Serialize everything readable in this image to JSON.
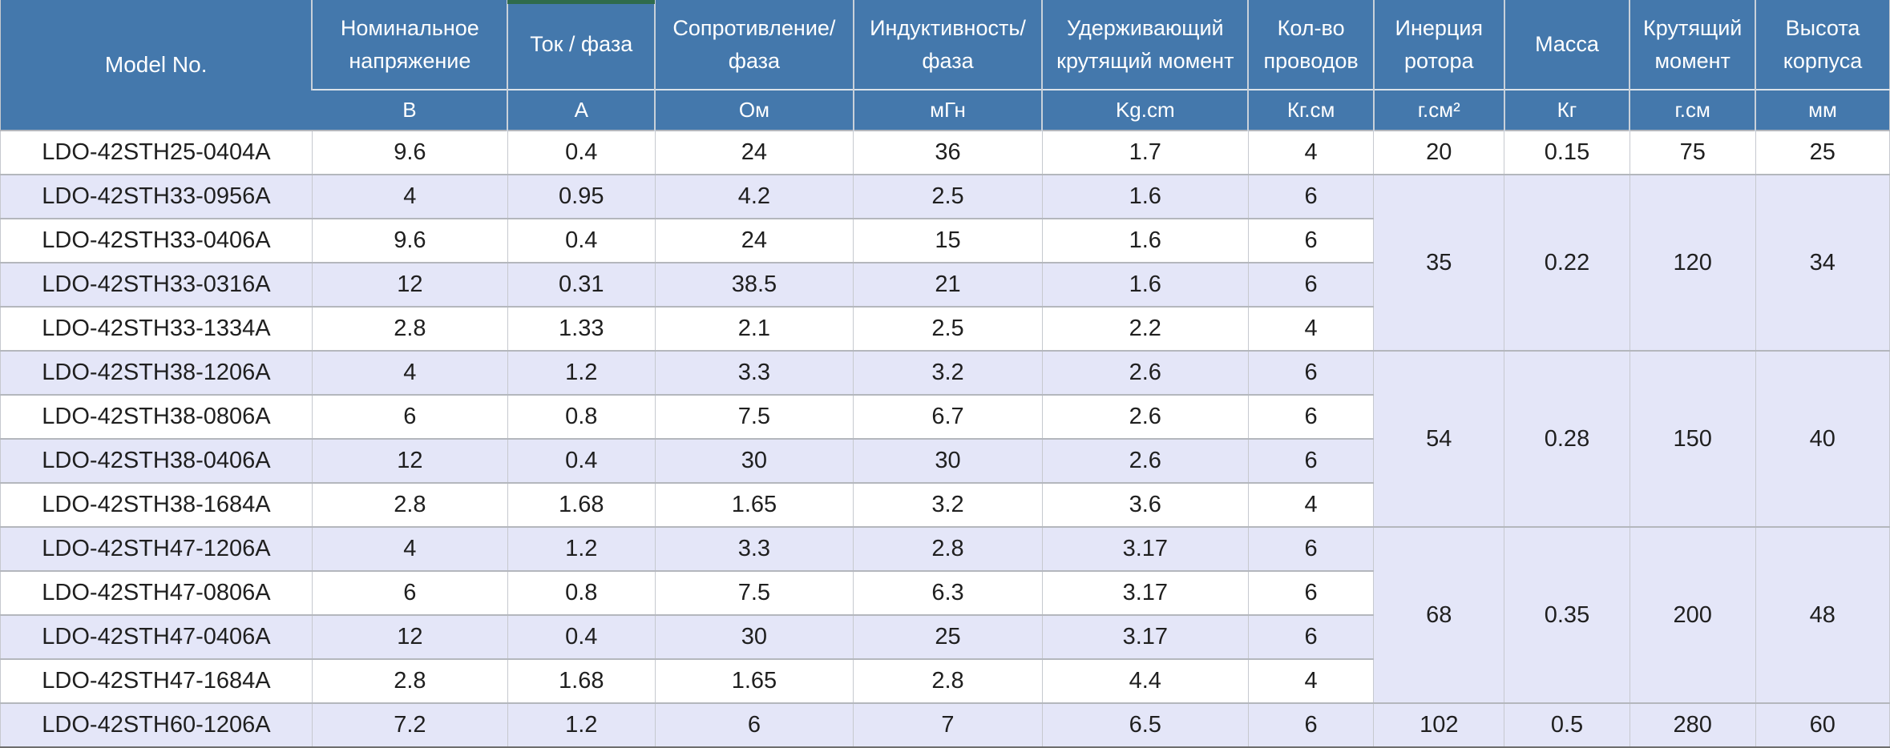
{
  "colors": {
    "header_background": "#4478ac",
    "header_text": "#ffffff",
    "row_stripe": "#e4e6f8",
    "row_white": "#ffffff",
    "grid_line": "#b4b7bd",
    "selection_green": "#2f6b4c",
    "body_text": "#1f1f1f"
  },
  "table": {
    "columns": [
      {
        "name": "Model No.",
        "unit": ""
      },
      {
        "name": "Номинальное напряжение",
        "unit": "В"
      },
      {
        "name": "Ток / фаза",
        "unit": "А"
      },
      {
        "name": "Сопротивление/ фаза",
        "unit": "Ом"
      },
      {
        "name": "Индуктивность/ фаза",
        "unit": "мГн"
      },
      {
        "name": "Удерживающий крутящий момент",
        "unit": "Kg.cm"
      },
      {
        "name": "Кол-во проводов",
        "unit": "Кг.см"
      },
      {
        "name": "Инерция ротора",
        "unit": "г.см²"
      },
      {
        "name": "Масса",
        "unit": "Кг"
      },
      {
        "name": "Крутящий момент",
        "unit": "г.см"
      },
      {
        "name": "Высота корпуса",
        "unit": "мм"
      }
    ],
    "rows": [
      {
        "model": "LDO-42STH25-0404A",
        "values": [
          "9.6",
          "0.4",
          "24",
          "36",
          "1.7",
          "4"
        ],
        "tail": {
          "values": [
            "20",
            "0.15",
            "75",
            "25"
          ],
          "rowspan": 1
        }
      },
      {
        "model": "LDO-42STH33-0956A",
        "values": [
          "4",
          "0.95",
          "4.2",
          "2.5",
          "1.6",
          "6"
        ],
        "tail": {
          "values": [
            "35",
            "0.22",
            "120",
            "34"
          ],
          "rowspan": 4
        }
      },
      {
        "model": "LDO-42STH33-0406A",
        "values": [
          "9.6",
          "0.4",
          "24",
          "15",
          "1.6",
          "6"
        ]
      },
      {
        "model": "LDO-42STH33-0316A",
        "values": [
          "12",
          "0.31",
          "38.5",
          "21",
          "1.6",
          "6"
        ]
      },
      {
        "model": "LDO-42STH33-1334A",
        "values": [
          "2.8",
          "1.33",
          "2.1",
          "2.5",
          "2.2",
          "4"
        ]
      },
      {
        "model": "LDO-42STH38-1206A",
        "values": [
          "4",
          "1.2",
          "3.3",
          "3.2",
          "2.6",
          "6"
        ],
        "tail": {
          "values": [
            "54",
            "0.28",
            "150",
            "40"
          ],
          "rowspan": 4
        }
      },
      {
        "model": "LDO-42STH38-0806A",
        "values": [
          "6",
          "0.8",
          "7.5",
          "6.7",
          "2.6",
          "6"
        ]
      },
      {
        "model": "LDO-42STH38-0406A",
        "values": [
          "12",
          "0.4",
          "30",
          "30",
          "2.6",
          "6"
        ]
      },
      {
        "model": "LDO-42STH38-1684A",
        "values": [
          "2.8",
          "1.68",
          "1.65",
          "3.2",
          "3.6",
          "4"
        ]
      },
      {
        "model": "LDO-42STH47-1206A",
        "values": [
          "4",
          "1.2",
          "3.3",
          "2.8",
          "3.17",
          "6"
        ],
        "tail": {
          "values": [
            "68",
            "0.35",
            "200",
            "48"
          ],
          "rowspan": 4
        }
      },
      {
        "model": "LDO-42STH47-0806A",
        "values": [
          "6",
          "0.8",
          "7.5",
          "6.3",
          "3.17",
          "6"
        ]
      },
      {
        "model": "LDO-42STH47-0406A",
        "values": [
          "12",
          "0.4",
          "30",
          "25",
          "3.17",
          "6"
        ]
      },
      {
        "model": "LDO-42STH47-1684A",
        "values": [
          "2.8",
          "1.68",
          "1.65",
          "2.8",
          "4.4",
          "4"
        ]
      },
      {
        "model": "LDO-42STH60-1206A",
        "values": [
          "7.2",
          "1.2",
          "6",
          "7",
          "6.5",
          "6"
        ],
        "tail": {
          "values": [
            "102",
            "0.5",
            "280",
            "60"
          ],
          "rowspan": 1
        }
      }
    ]
  }
}
